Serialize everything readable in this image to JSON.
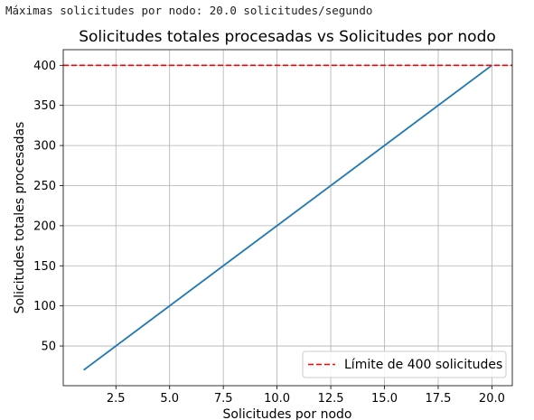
{
  "output_line": "Máximas solicitudes por nodo: 20.0 solicitudes/segundo",
  "chart_data": {
    "type": "line",
    "title": "Solicitudes totales procesadas vs Solicitudes por nodo",
    "xlabel": "Solicitudes por nodo",
    "ylabel": "Solicitudes totales procesadas",
    "xlim": [
      0.05,
      20.95
    ],
    "ylim": [
      0.5,
      419.5
    ],
    "xticks": [
      2.5,
      5.0,
      7.5,
      10.0,
      12.5,
      15.0,
      17.5,
      20.0
    ],
    "yticks": [
      50,
      100,
      150,
      200,
      250,
      300,
      350,
      400
    ],
    "grid": true,
    "legend_position": "lower-right",
    "series": [
      {
        "x": [
          1,
          20
        ],
        "y": [
          20,
          400
        ],
        "color": "#1f77b4",
        "style": "solid"
      }
    ],
    "reference_lines": [
      {
        "orientation": "horizontal",
        "y": 400,
        "name": "Límite de 400 solicitudes",
        "color": "#ff0000",
        "style": "dashed"
      }
    ]
  }
}
